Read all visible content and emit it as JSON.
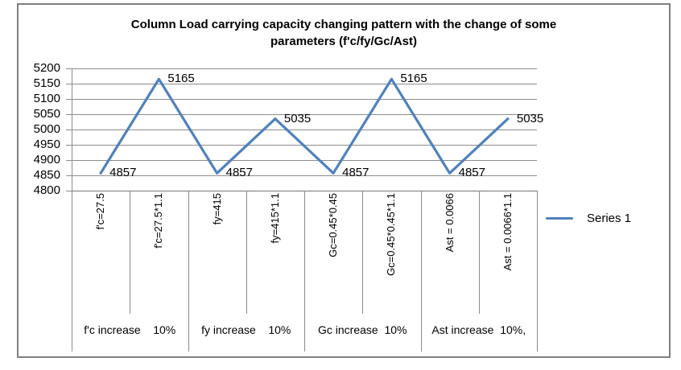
{
  "title": {
    "line1": "Column Load carrying capacity changing pattern with the change of some",
    "line2": "parameters (f'c/fy/Gc/Ast)"
  },
  "legend": {
    "label": "Series 1",
    "marker_color": "#4F81BD"
  },
  "colors": {
    "series_line": "#4F81BD",
    "gridline": "#8C8C8C",
    "axis_line": "#767676",
    "frame_border": "#7F7F7F",
    "text": "#000000"
  },
  "chart_data": {
    "type": "line",
    "title": "Column Load carrying capacity changing pattern with the change of some parameters (f'c/fy/Gc/Ast)",
    "categories": [
      "f'c=27.5",
      "f'c=27.5*1.1",
      "fy=415",
      "fy=415*1.1",
      "Gc=0.45*0.45",
      "Gc=0.45*0.45*1.1",
      "Ast = 0.0066",
      "Ast = 0.0066*1.1"
    ],
    "category_groups": [
      "f'c increase    10%",
      "fy increase    10%",
      "Gc increase  10%",
      "Ast increase  10%,"
    ],
    "series": [
      {
        "name": "Series 1",
        "values": [
          4857,
          5165,
          4857,
          5035,
          4857,
          5165,
          4857,
          5035
        ]
      }
    ],
    "data_labels": [
      "4857",
      "5165",
      "4857",
      "5035",
      "4857",
      "5165",
      "4857",
      "5035"
    ],
    "yticks": [
      5200,
      5150,
      5100,
      5050,
      5000,
      4950,
      4900,
      4850,
      4800
    ],
    "ylim": [
      4800,
      5200
    ],
    "xlabel": "",
    "ylabel": "",
    "grid": true,
    "legend_position": "right",
    "line_color": "#4F81BD"
  }
}
